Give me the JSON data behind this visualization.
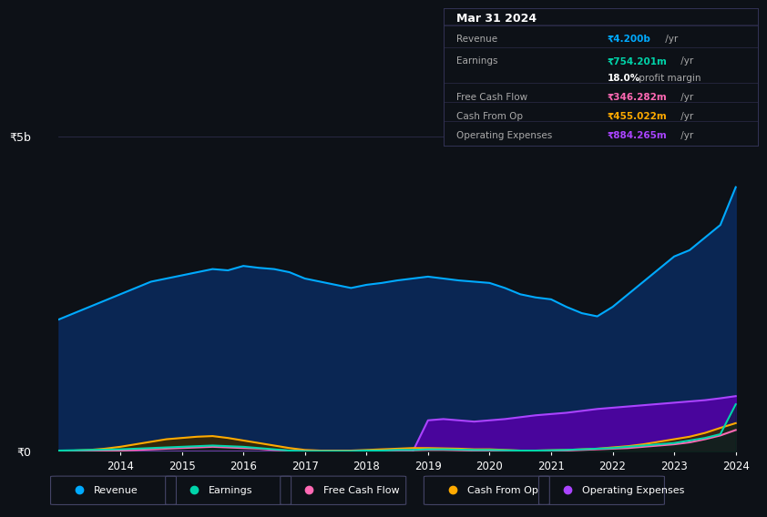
{
  "background_color": "#0d1117",
  "chart_bg_color": "#0d1117",
  "title": "Mar 31 2024",
  "y_label_5b": "₹5b",
  "y_label_0": "₹0",
  "x_ticks": [
    2014,
    2015,
    2016,
    2017,
    2018,
    2019,
    2020,
    2021,
    2022,
    2023,
    2024
  ],
  "info_box": {
    "title": "Mar 31 2024",
    "revenue": "₹4.200b /yr",
    "earnings": "₹754.201m /yr",
    "profit_margin": "18.0% profit margin",
    "free_cash_flow": "₹346.282m /yr",
    "cash_from_op": "₹455.022m /yr",
    "operating_expenses": "₹884.265m /yr"
  },
  "legend": [
    {
      "label": "Revenue",
      "color": "#00aaff"
    },
    {
      "label": "Earnings",
      "color": "#00d4aa"
    },
    {
      "label": "Free Cash Flow",
      "color": "#ff69b4"
    },
    {
      "label": "Cash From Op",
      "color": "#ffaa00"
    },
    {
      "label": "Operating Expenses",
      "color": "#aa44ff"
    }
  ],
  "years": [
    2013,
    2013.25,
    2013.5,
    2013.75,
    2014,
    2014.25,
    2014.5,
    2014.75,
    2015,
    2015.25,
    2015.5,
    2015.75,
    2016,
    2016.25,
    2016.5,
    2016.75,
    2017,
    2017.25,
    2017.5,
    2017.75,
    2018,
    2018.25,
    2018.5,
    2018.75,
    2019,
    2019.25,
    2019.5,
    2019.75,
    2020,
    2020.25,
    2020.5,
    2020.75,
    2021,
    2021.25,
    2021.5,
    2021.75,
    2022,
    2022.25,
    2022.5,
    2022.75,
    2023,
    2023.25,
    2023.5,
    2023.75,
    2024
  ],
  "revenue": [
    2.1,
    2.2,
    2.3,
    2.4,
    2.5,
    2.6,
    2.7,
    2.75,
    2.8,
    2.85,
    2.9,
    2.88,
    2.95,
    2.92,
    2.9,
    2.85,
    2.75,
    2.7,
    2.65,
    2.6,
    2.65,
    2.68,
    2.72,
    2.75,
    2.78,
    2.75,
    2.72,
    2.7,
    2.68,
    2.6,
    2.5,
    2.45,
    2.42,
    2.3,
    2.2,
    2.15,
    2.3,
    2.5,
    2.7,
    2.9,
    3.1,
    3.2,
    3.4,
    3.6,
    4.2
  ],
  "earnings": [
    0.02,
    0.025,
    0.03,
    0.035,
    0.04,
    0.05,
    0.06,
    0.07,
    0.08,
    0.09,
    0.1,
    0.09,
    0.08,
    0.06,
    0.04,
    0.02,
    0.01,
    0.01,
    0.01,
    0.01,
    0.02,
    0.02,
    0.03,
    0.03,
    0.04,
    0.04,
    0.035,
    0.03,
    0.03,
    0.025,
    0.02,
    0.02,
    0.025,
    0.03,
    0.04,
    0.05,
    0.06,
    0.08,
    0.1,
    0.12,
    0.14,
    0.18,
    0.22,
    0.28,
    0.754
  ],
  "free_cash_flow": [
    0.01,
    0.01,
    0.015,
    0.015,
    0.02,
    0.03,
    0.04,
    0.05,
    0.06,
    0.07,
    0.08,
    0.07,
    0.06,
    0.05,
    0.03,
    0.02,
    0.01,
    0.01,
    0.01,
    0.01,
    0.02,
    0.02,
    0.025,
    0.025,
    0.03,
    0.03,
    0.025,
    0.02,
    0.02,
    0.015,
    0.01,
    0.01,
    0.015,
    0.02,
    0.03,
    0.04,
    0.05,
    0.06,
    0.08,
    0.1,
    0.12,
    0.15,
    0.2,
    0.26,
    0.346
  ],
  "cash_from_op": [
    0.01,
    0.02,
    0.03,
    0.05,
    0.08,
    0.12,
    0.16,
    0.2,
    0.22,
    0.24,
    0.25,
    0.22,
    0.18,
    0.14,
    0.1,
    0.06,
    0.03,
    0.02,
    0.02,
    0.02,
    0.03,
    0.04,
    0.05,
    0.06,
    0.06,
    0.055,
    0.05,
    0.04,
    0.04,
    0.03,
    0.02,
    0.02,
    0.025,
    0.03,
    0.04,
    0.05,
    0.07,
    0.09,
    0.12,
    0.16,
    0.2,
    0.24,
    0.3,
    0.38,
    0.455
  ],
  "operating_expenses": [
    0.0,
    0.0,
    0.0,
    0.0,
    0.0,
    0.0,
    0.0,
    0.0,
    0.0,
    0.0,
    0.0,
    0.0,
    0.0,
    0.0,
    0.0,
    0.0,
    0.0,
    0.0,
    0.0,
    0.0,
    0.0,
    0.0,
    0.0,
    0.0,
    0.5,
    0.52,
    0.5,
    0.48,
    0.5,
    0.52,
    0.55,
    0.58,
    0.6,
    0.62,
    0.65,
    0.68,
    0.7,
    0.72,
    0.74,
    0.76,
    0.78,
    0.8,
    0.82,
    0.85,
    0.884
  ],
  "ylim": [
    0,
    5.5
  ],
  "xlim": [
    2013.0,
    2024.3
  ]
}
